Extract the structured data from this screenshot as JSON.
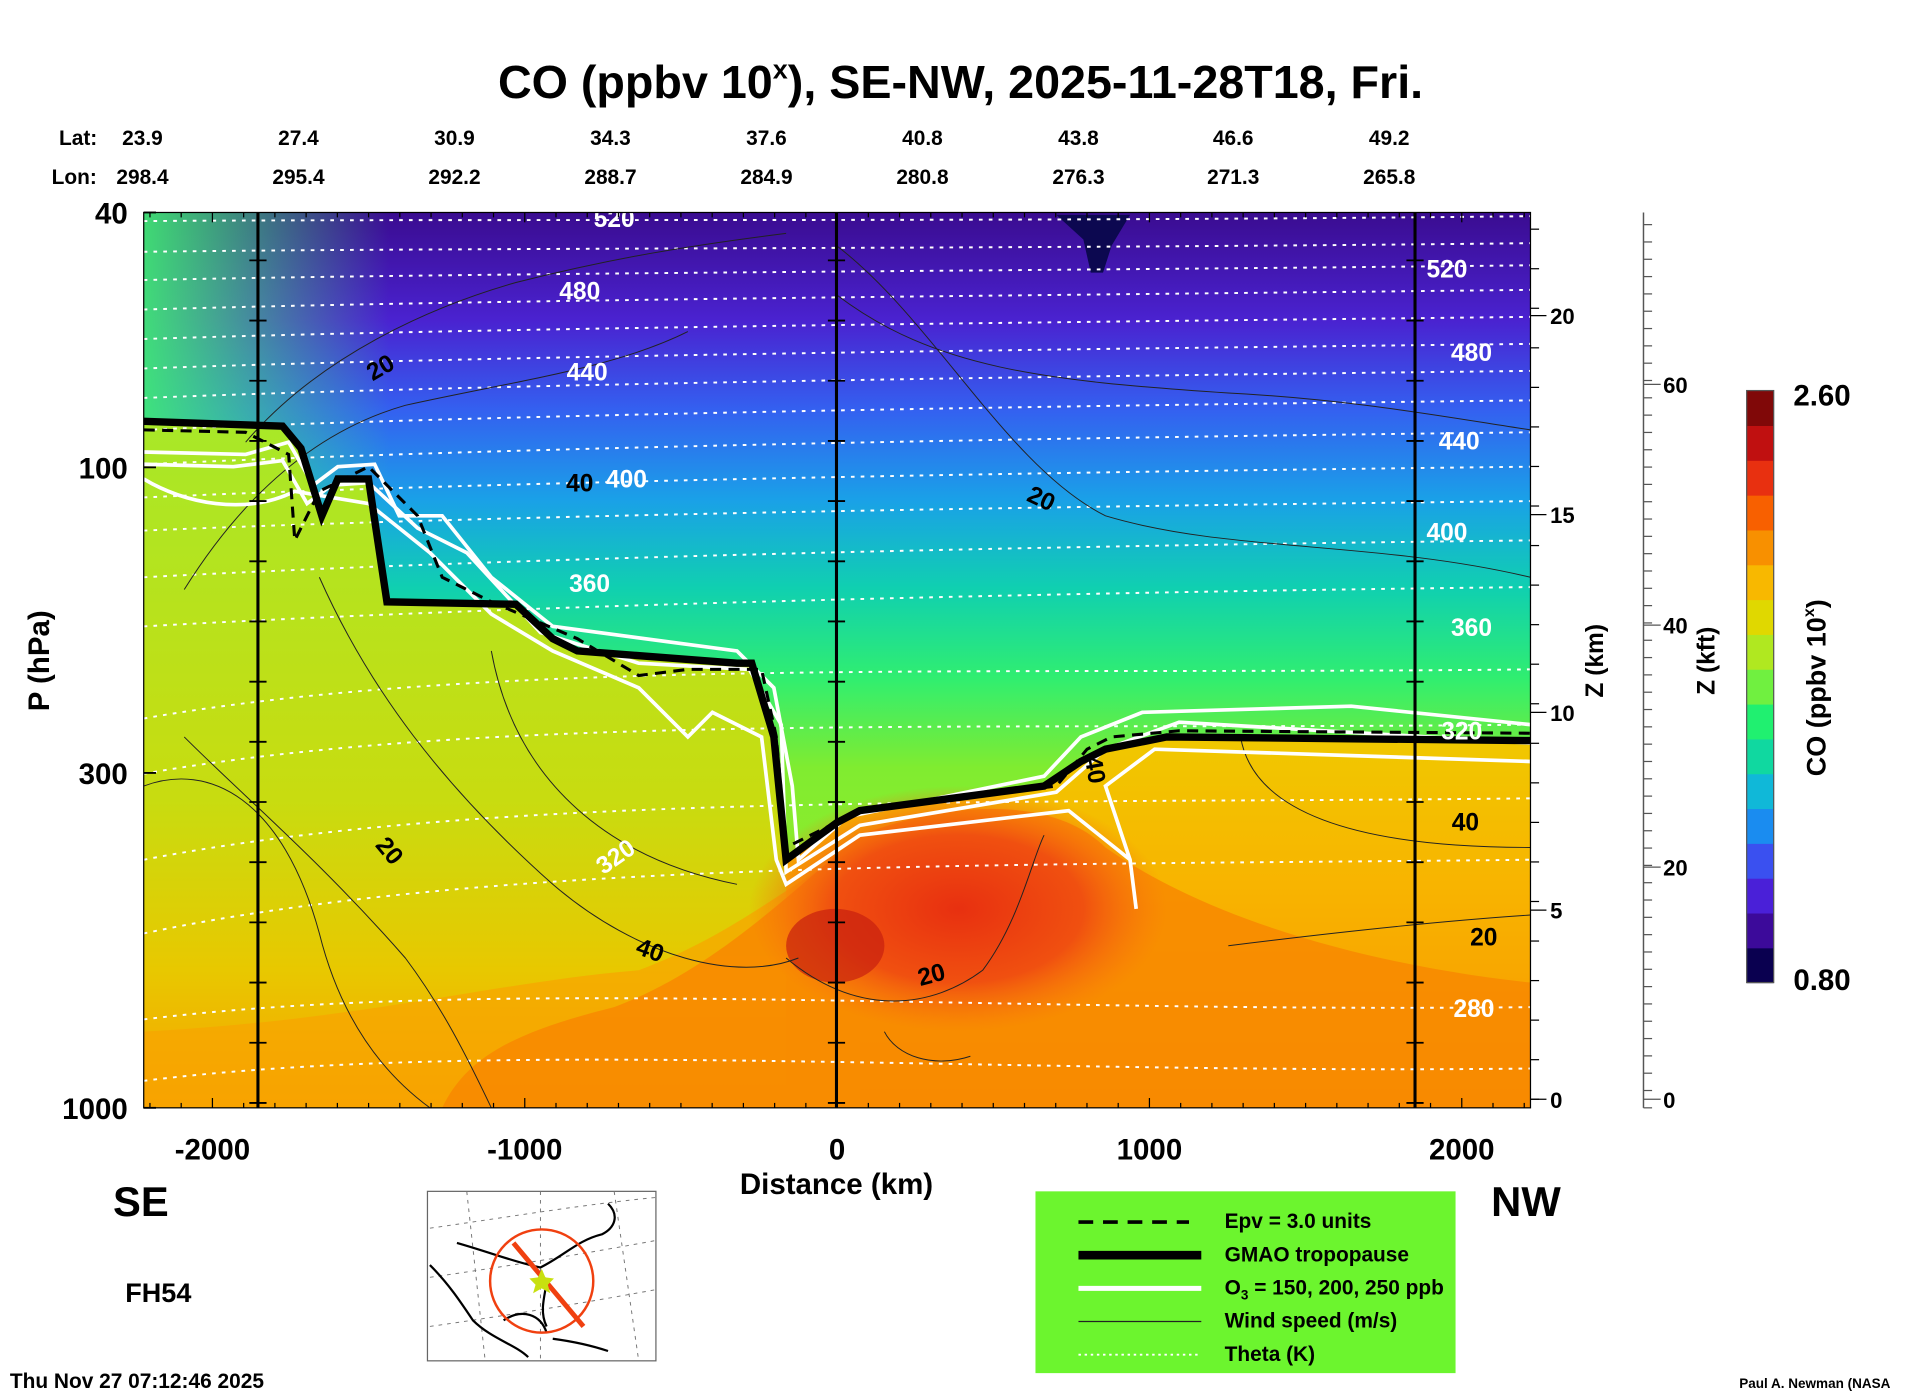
{
  "chart_data": {
    "type": "heatmap",
    "title_main": "CO (ppbv 10",
    "title_sup": "x",
    "title_rest": "), SE-NW, 2025-11-28T18, Fri.",
    "lat_label": "Lat:",
    "lon_label": "Lon:",
    "lat": [
      "23.9",
      "27.4",
      "30.9",
      "34.3",
      "37.6",
      "40.8",
      "43.8",
      "46.6",
      "49.2"
    ],
    "lon": [
      "298.4",
      "295.4",
      "292.2",
      "288.7",
      "284.9",
      "280.8",
      "276.3",
      "271.3",
      "265.8"
    ],
    "xlabel": "Distance (km)",
    "xticks": [
      "-2000",
      "-1000",
      "0",
      "1000",
      "2000"
    ],
    "xtick_values": [
      -2000,
      -1000,
      0,
      1000,
      2000
    ],
    "xlim": [
      -2220,
      2220
    ],
    "ylabel": "P (hPa)",
    "yticks": [
      "40",
      "100",
      "300",
      "1000"
    ],
    "ytick_values": [
      40,
      100,
      300,
      1000
    ],
    "ylim": [
      1000,
      40
    ],
    "yscale": "log",
    "z_km_label": "Z (km)",
    "z_km_ticks": [
      "0",
      "5",
      "10",
      "15",
      "20"
    ],
    "z_kft_label": "Z (kft)",
    "z_kft_ticks": [
      "0",
      "20",
      "40",
      "60"
    ],
    "colorbar": {
      "label": "CO (ppbv 10",
      "label_sup": "x",
      "label_end": ")",
      "min": "0.80",
      "max": "2.60",
      "colors": [
        "#0a0050",
        "#3c0a9a",
        "#4a20d8",
        "#3a50f0",
        "#1a8cf0",
        "#10b8d8",
        "#10d8a0",
        "#20f070",
        "#70f040",
        "#b0e820",
        "#e0d800",
        "#f8b800",
        "#f89000",
        "#f86000",
        "#e83010",
        "#c01010",
        "#800808"
      ]
    },
    "theta_labels": [
      "520",
      "480",
      "440",
      "400",
      "360",
      "320",
      "520",
      "480",
      "440",
      "400",
      "360",
      "320",
      "280"
    ],
    "wind_labels": [
      "20",
      "40",
      "20",
      "20",
      "40",
      "20",
      "40",
      "20",
      "40"
    ],
    "left_label": "SE",
    "right_label": "NW",
    "forecast_hour": "FH54",
    "timestamp": "Thu Nov 27 07:12:46 2025",
    "credit": "Paul A. Newman (NASA",
    "legend": {
      "placement": "bottom-right",
      "background": "#6cf52e",
      "entries": [
        {
          "label": "Epv = 3.0 units"
        },
        {
          "label": "GMAO tropopause"
        },
        {
          "label_pre": "O",
          "label_sub": "3",
          "label_post": " = 150, 200, 250 ppb"
        },
        {
          "label": "Wind speed (m/s)"
        },
        {
          "label": "Theta (K)"
        }
      ]
    }
  }
}
